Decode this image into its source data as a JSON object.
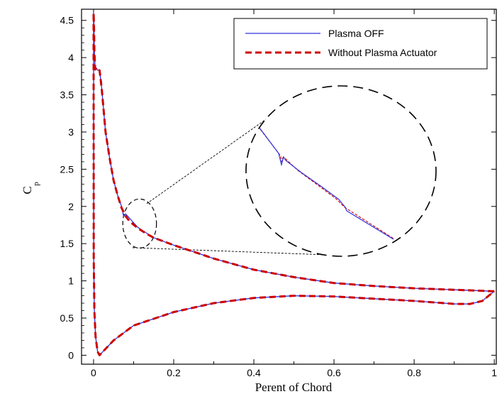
{
  "chart_data": {
    "type": "line",
    "xlabel": "Perent of Chord",
    "ylabel_main": "C",
    "ylabel_sub": "p",
    "xlim": [
      -0.03,
      1.005
    ],
    "ylim": [
      -0.12,
      4.65
    ],
    "xticks": [
      "0",
      "0.2",
      "0.4",
      "0.6",
      "0.8",
      "1"
    ],
    "xtick_values": [
      0,
      0.2,
      0.4,
      0.6,
      0.8,
      1
    ],
    "yticks": [
      "0",
      "0.5",
      "1",
      "1.5",
      "2",
      "2.5",
      "3",
      "3.5",
      "4",
      "4.5"
    ],
    "ytick_values": [
      0,
      0.5,
      1,
      1.5,
      2,
      2.5,
      3,
      3.5,
      4,
      4.5
    ],
    "legend_position": "top-right",
    "grid": false,
    "series": [
      {
        "name": "Plasma OFF",
        "color": "#3030e0",
        "style": "solid",
        "x": [
          1.0,
          0.95,
          0.9,
          0.8,
          0.7,
          0.6,
          0.5,
          0.4,
          0.3,
          0.25,
          0.2,
          0.15,
          0.13,
          0.11,
          0.09,
          0.08,
          0.075,
          0.07,
          0.06,
          0.05,
          0.04,
          0.03,
          0.025,
          0.02,
          0.015,
          0.01,
          0.007,
          0.004,
          0.002,
          0.001,
          0.0,
          0.0005,
          0.002,
          0.005,
          0.01,
          0.015,
          0.02,
          0.05,
          0.1,
          0.2,
          0.3,
          0.4,
          0.5,
          0.6,
          0.7,
          0.8,
          0.9,
          0.94,
          0.97,
          1.0
        ],
        "y": [
          0.86,
          0.87,
          0.88,
          0.9,
          0.93,
          0.97,
          1.05,
          1.15,
          1.3,
          1.39,
          1.48,
          1.58,
          1.65,
          1.72,
          1.84,
          1.9,
          1.87,
          2.0,
          2.15,
          2.35,
          2.65,
          3.0,
          3.3,
          3.6,
          3.83,
          3.83,
          3.86,
          3.84,
          4.1,
          4.45,
          4.6,
          1.3,
          0.6,
          0.25,
          0.05,
          0.0,
          0.03,
          0.2,
          0.4,
          0.58,
          0.7,
          0.77,
          0.8,
          0.79,
          0.76,
          0.73,
          0.69,
          0.69,
          0.73,
          0.86
        ]
      },
      {
        "name": "Without Plasma Actuator",
        "color": "#cc0000",
        "style": "dashed",
        "x": [
          1.0,
          0.95,
          0.9,
          0.8,
          0.7,
          0.6,
          0.5,
          0.4,
          0.3,
          0.25,
          0.2,
          0.15,
          0.13,
          0.11,
          0.09,
          0.08,
          0.07,
          0.06,
          0.05,
          0.04,
          0.03,
          0.025,
          0.02,
          0.015,
          0.01,
          0.007,
          0.004,
          0.002,
          0.001,
          0.0,
          0.0005,
          0.002,
          0.005,
          0.01,
          0.015,
          0.02,
          0.05,
          0.1,
          0.2,
          0.3,
          0.4,
          0.5,
          0.6,
          0.7,
          0.8,
          0.9,
          0.94,
          0.97,
          1.0
        ],
        "y": [
          0.86,
          0.87,
          0.88,
          0.9,
          0.93,
          0.97,
          1.05,
          1.15,
          1.3,
          1.39,
          1.48,
          1.58,
          1.64,
          1.71,
          1.8,
          1.87,
          1.98,
          2.15,
          2.35,
          2.65,
          3.0,
          3.3,
          3.6,
          3.83,
          3.83,
          3.86,
          3.84,
          4.1,
          4.45,
          4.6,
          1.3,
          0.6,
          0.25,
          0.05,
          0.0,
          0.03,
          0.2,
          0.4,
          0.58,
          0.7,
          0.77,
          0.8,
          0.79,
          0.76,
          0.73,
          0.69,
          0.69,
          0.73,
          0.86
        ]
      }
    ],
    "zoom_inset": {
      "region_center": [
        0.115,
        1.77
      ],
      "region_radius_x": 0.042,
      "region_radius_y": 0.33
    }
  }
}
